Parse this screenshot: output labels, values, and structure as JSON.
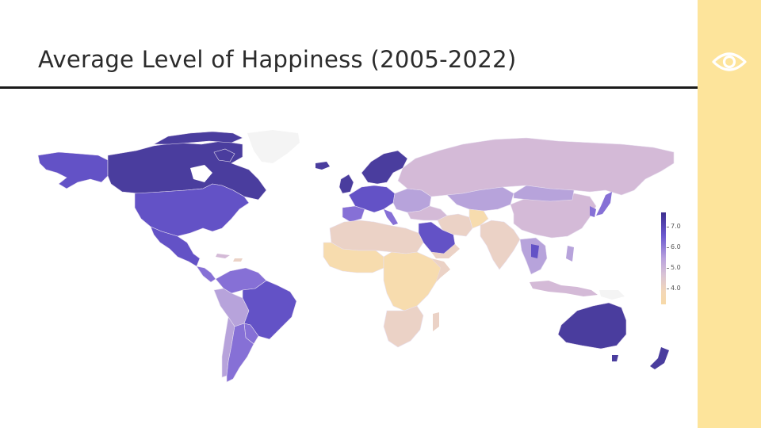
{
  "slide": {
    "title": "Average Level of Happiness (2005-2022)",
    "eye_icon": "eye-icon",
    "accent_color": "#fde49b"
  },
  "legend": {
    "ticks": [
      "7.0",
      "6.0",
      "5.0",
      "4.0"
    ],
    "high_color": "#3d2f8f",
    "low_color": "#f7d9a7"
  },
  "colors": {
    "very_high": "#4a3d9e",
    "high": "#6352c6",
    "mid_high": "#8670d6",
    "mid": "#b7a3db",
    "mid_low": "#d4bad7",
    "low": "#ebd2c6",
    "very_low": "#f7dcae"
  }
}
